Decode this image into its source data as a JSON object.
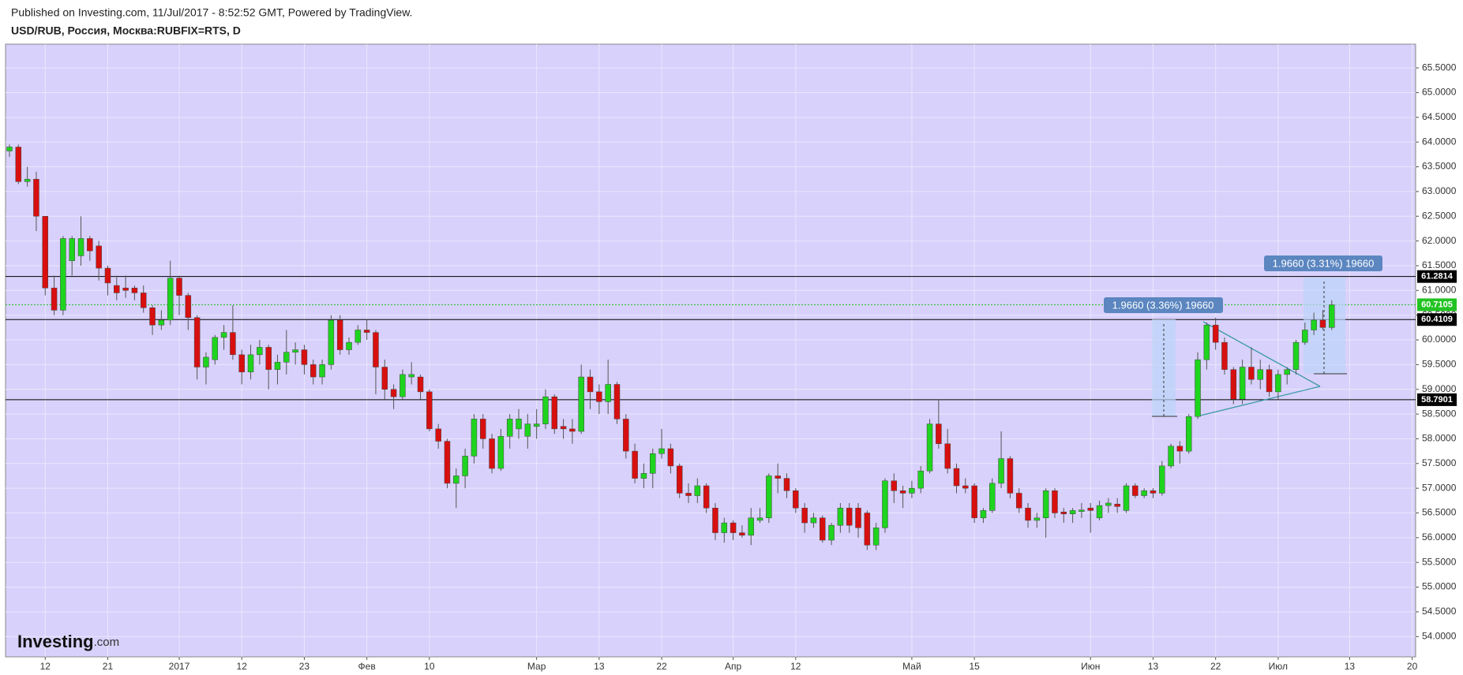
{
  "header": {
    "published": "Published on Investing.com, 11/Jul/2017 - 8:52:52 GMT, Powered by TradingView.",
    "symbol": "USD/RUB, Россия, Москва:RUBFIX=RTS, D",
    "logo": "Investing",
    "logo_suffix": ".com"
  },
  "chart_data": {
    "type": "candlestick",
    "categories": [
      null,
      null,
      null,
      null,
      "12",
      null,
      null,
      null,
      null,
      null,
      null,
      "21",
      null,
      null,
      null,
      null,
      null,
      null,
      null,
      "2017",
      null,
      null,
      null,
      null,
      null,
      null,
      "12",
      null,
      null,
      null,
      null,
      null,
      null,
      "23",
      null,
      null,
      null,
      null,
      null,
      null,
      "Фев",
      null,
      null,
      null,
      null,
      null,
      null,
      "10",
      null,
      null,
      null,
      null,
      null,
      null,
      null,
      null,
      null,
      null,
      null,
      "Мар",
      null,
      null,
      null,
      null,
      null,
      null,
      "13",
      null,
      null,
      null,
      null,
      null,
      null,
      "22",
      null,
      null,
      null,
      null,
      null,
      null,
      null,
      "Апр",
      null,
      null,
      null,
      null,
      null,
      null,
      "12",
      null,
      null,
      null,
      null,
      null,
      null,
      null,
      null,
      null,
      null,
      null,
      null,
      "Май",
      null,
      null,
      null,
      null,
      null,
      null,
      "15",
      null,
      null,
      null,
      null,
      null,
      null,
      null,
      null,
      null,
      null,
      null,
      null,
      "Июн",
      null,
      null,
      null,
      null,
      null,
      null,
      "13",
      null,
      null,
      null,
      null,
      null,
      null,
      "22",
      null,
      null,
      null,
      null,
      null,
      null,
      "Июл",
      null,
      null,
      null,
      null,
      null,
      null,
      null,
      "13",
      null,
      null,
      null,
      null,
      null,
      null,
      "20"
    ],
    "open": [
      63.82,
      63.9,
      63.2,
      63.25,
      62.5,
      61.05,
      60.6,
      61.6,
      61.7,
      62.05,
      61.9,
      61.45,
      61.1,
      61.05,
      61.05,
      60.95,
      60.65,
      60.3,
      60.4,
      61.25,
      60.9,
      60.45,
      59.45,
      59.6,
      60.05,
      60.15,
      59.7,
      59.35,
      59.7,
      59.85,
      59.4,
      59.55,
      59.75,
      59.8,
      59.5,
      59.25,
      59.5,
      60.4,
      59.8,
      59.95,
      60.2,
      60.15,
      59.45,
      59.0,
      58.85,
      59.25,
      59.25,
      58.95,
      58.2,
      57.95,
      57.1,
      57.25,
      57.65,
      58.4,
      58.0,
      57.4,
      58.05,
      58.2,
      58.05,
      58.25,
      58.3,
      58.85,
      58.25,
      58.2,
      58.15,
      59.25,
      58.95,
      58.75,
      59.1,
      58.4,
      57.75,
      57.2,
      57.3,
      57.7,
      57.8,
      57.45,
      56.9,
      56.85,
      57.05,
      56.6,
      56.1,
      56.3,
      56.1,
      56.05,
      56.35,
      56.4,
      57.25,
      57.2,
      56.95,
      56.6,
      56.3,
      56.4,
      55.95,
      56.25,
      56.6,
      56.6,
      56.5,
      55.85,
      56.2,
      57.15,
      56.95,
      56.9,
      57.0,
      57.35,
      58.3,
      57.9,
      57.4,
      57.05,
      57.05,
      56.4,
      56.55,
      57.1,
      57.6,
      56.9,
      56.6,
      56.35,
      56.4,
      56.95,
      56.52,
      56.48,
      56.53,
      56.6,
      56.4,
      56.65,
      56.68,
      56.55,
      57.05,
      56.85,
      56.95,
      56.9,
      57.45,
      57.85,
      57.75,
      58.45,
      59.6,
      60.3,
      59.95,
      59.4,
      58.8,
      59.45,
      59.2,
      59.4,
      58.95,
      59.3,
      59.4,
      59.95,
      60.2,
      60.4,
      60.25,
      null,
      null,
      null,
      null,
      null,
      null,
      null,
      null,
      null
    ],
    "high": [
      63.95,
      63.95,
      63.5,
      63.4,
      62.5,
      61.3,
      62.1,
      62.1,
      62.5,
      62.1,
      62.0,
      61.5,
      61.3,
      61.3,
      61.1,
      61.1,
      60.7,
      60.6,
      61.6,
      61.3,
      60.95,
      60.5,
      59.75,
      60.1,
      60.3,
      60.7,
      59.8,
      59.9,
      60.0,
      59.9,
      59.7,
      60.2,
      59.95,
      59.9,
      59.6,
      59.6,
      60.5,
      60.5,
      60.05,
      60.3,
      60.4,
      60.2,
      59.6,
      59.1,
      59.4,
      59.55,
      59.3,
      59.0,
      58.3,
      58.0,
      57.4,
      57.8,
      58.5,
      58.5,
      58.1,
      58.2,
      58.5,
      58.6,
      58.5,
      58.6,
      59.0,
      58.9,
      58.4,
      58.4,
      59.5,
      59.4,
      59.1,
      59.6,
      59.15,
      58.5,
      57.9,
      57.5,
      57.8,
      58.2,
      57.9,
      57.5,
      57.1,
      57.2,
      57.1,
      56.7,
      56.4,
      56.35,
      56.25,
      56.6,
      56.6,
      57.3,
      57.5,
      57.3,
      57.0,
      56.7,
      56.5,
      56.45,
      56.3,
      56.7,
      56.7,
      56.7,
      56.55,
      56.3,
      57.2,
      57.3,
      57.05,
      57.15,
      57.45,
      58.4,
      58.8,
      58.2,
      57.5,
      57.2,
      57.1,
      56.6,
      57.2,
      58.15,
      57.65,
      57.0,
      56.7,
      56.5,
      57.0,
      57.0,
      56.6,
      56.6,
      56.7,
      56.7,
      56.75,
      56.8,
      56.8,
      57.1,
      57.1,
      57.0,
      57.0,
      57.55,
      57.9,
      57.95,
      58.5,
      59.75,
      60.35,
      60.45,
      60.05,
      59.45,
      59.6,
      59.85,
      59.6,
      59.5,
      59.4,
      59.45,
      60.0,
      60.35,
      60.55,
      60.6,
      60.8,
      null,
      null,
      null,
      null,
      null,
      null,
      null,
      null,
      null
    ],
    "low": [
      63.7,
      63.15,
      63.1,
      62.2,
      60.9,
      60.5,
      60.5,
      61.3,
      61.5,
      61.6,
      61.2,
      60.9,
      60.8,
      60.85,
      60.8,
      60.55,
      60.1,
      60.2,
      60.3,
      60.5,
      60.2,
      59.2,
      59.1,
      59.5,
      59.8,
      59.6,
      59.1,
      59.2,
      59.5,
      59.0,
      59.1,
      59.3,
      59.5,
      59.3,
      59.1,
      59.1,
      59.4,
      59.7,
      59.7,
      59.9,
      60.0,
      58.9,
      58.8,
      58.6,
      58.8,
      59.1,
      58.8,
      58.15,
      57.8,
      57.0,
      56.6,
      57.0,
      57.5,
      57.8,
      57.3,
      57.35,
      57.8,
      58.0,
      57.8,
      58.0,
      58.2,
      58.1,
      58.0,
      57.9,
      58.1,
      58.6,
      58.5,
      58.5,
      58.3,
      57.6,
      57.1,
      57.0,
      57.0,
      57.6,
      57.3,
      56.8,
      56.7,
      56.7,
      56.5,
      55.95,
      55.9,
      55.95,
      56.0,
      55.85,
      56.3,
      56.3,
      56.9,
      56.8,
      56.5,
      56.1,
      56.2,
      55.9,
      55.85,
      56.1,
      56.1,
      56.0,
      55.75,
      55.75,
      56.1,
      56.7,
      56.6,
      56.8,
      56.9,
      57.3,
      57.8,
      57.3,
      56.9,
      56.9,
      56.3,
      56.3,
      56.5,
      57.0,
      56.8,
      56.5,
      56.2,
      56.2,
      56.0,
      56.4,
      56.3,
      56.3,
      56.4,
      56.1,
      56.35,
      56.5,
      56.5,
      56.5,
      56.8,
      56.8,
      56.8,
      56.85,
      57.4,
      57.5,
      57.7,
      58.4,
      59.4,
      59.8,
      59.3,
      58.7,
      58.7,
      59.1,
      59.0,
      58.85,
      58.8,
      59.1,
      59.3,
      59.9,
      60.1,
      60.2,
      60.2,
      null,
      null,
      null,
      null,
      null,
      null,
      null,
      null,
      null
    ],
    "close": [
      63.9,
      63.2,
      63.25,
      62.5,
      61.05,
      60.6,
      62.05,
      62.05,
      62.05,
      61.8,
      61.45,
      61.15,
      60.95,
      61.0,
      60.95,
      60.65,
      60.3,
      60.4,
      61.25,
      60.9,
      60.45,
      59.45,
      59.65,
      60.05,
      60.15,
      59.7,
      59.35,
      59.7,
      59.85,
      59.4,
      59.55,
      59.75,
      59.8,
      59.5,
      59.25,
      59.5,
      60.4,
      59.8,
      59.95,
      60.2,
      60.15,
      59.45,
      59.0,
      58.85,
      59.3,
      59.3,
      58.95,
      58.2,
      57.95,
      57.1,
      57.25,
      57.65,
      58.4,
      58.0,
      57.4,
      58.05,
      58.4,
      58.4,
      58.3,
      58.3,
      58.85,
      58.2,
      58.2,
      58.15,
      59.25,
      58.95,
      58.75,
      59.1,
      58.4,
      57.75,
      57.2,
      57.3,
      57.7,
      57.8,
      57.45,
      56.9,
      56.85,
      57.05,
      56.6,
      56.1,
      56.3,
      56.1,
      56.05,
      56.4,
      56.4,
      57.25,
      57.2,
      56.95,
      56.6,
      56.3,
      56.4,
      55.95,
      56.25,
      56.6,
      56.25,
      56.2,
      55.85,
      56.2,
      57.15,
      56.95,
      56.9,
      57.0,
      57.35,
      58.3,
      57.9,
      57.4,
      57.05,
      57.0,
      56.4,
      56.55,
      57.1,
      57.6,
      56.9,
      56.6,
      56.35,
      56.4,
      56.95,
      56.5,
      56.48,
      56.55,
      56.56,
      56.55,
      56.65,
      56.7,
      56.63,
      57.05,
      56.85,
      56.95,
      56.9,
      57.45,
      57.85,
      57.75,
      58.45,
      59.6,
      60.3,
      59.95,
      59.4,
      58.8,
      59.45,
      59.2,
      59.4,
      58.95,
      59.3,
      59.4,
      59.95,
      60.2,
      60.4,
      60.25,
      60.71,
      null,
      null,
      null,
      null,
      null,
      null,
      null,
      null,
      null
    ],
    "up_color": "#1ed41e",
    "down_color": "#d80f0f",
    "ylim": [
      53.59,
      65.98
    ],
    "yticks": [
      {
        "value": 54.0,
        "label": "54.0000"
      },
      {
        "value": 54.5,
        "label": "54.5000"
      },
      {
        "value": 55.0,
        "label": "55.0000"
      },
      {
        "value": 55.5,
        "label": "55.5000"
      },
      {
        "value": 56.0,
        "label": "56.0000"
      },
      {
        "value": 56.5,
        "label": "56.5000"
      },
      {
        "value": 57.0,
        "label": "57.0000"
      },
      {
        "value": 57.5,
        "label": "57.5000"
      },
      {
        "value": 58.0,
        "label": "58.0000"
      },
      {
        "value": 58.5,
        "label": "58.5000"
      },
      {
        "value": 59.0,
        "label": "59.0000"
      },
      {
        "value": 59.5,
        "label": "59.5000"
      },
      {
        "value": 60.0,
        "label": "60.0000"
      },
      {
        "value": 60.5,
        "label": "60.5000"
      },
      {
        "value": 61.0,
        "label": "61.0000"
      },
      {
        "value": 61.5,
        "label": "61.5000"
      },
      {
        "value": 62.0,
        "label": "62.0000"
      },
      {
        "value": 62.5,
        "label": "62.5000"
      },
      {
        "value": 63.0,
        "label": "63.0000"
      },
      {
        "value": 63.5,
        "label": "63.5000"
      },
      {
        "value": 64.0,
        "label": "64.0000"
      },
      {
        "value": 64.5,
        "label": "64.5000"
      },
      {
        "value": 65.0,
        "label": "65.0000"
      },
      {
        "value": 65.5,
        "label": "65.5000"
      }
    ],
    "grid": true,
    "levels": [
      {
        "value": 61.2814,
        "label": "61.2814",
        "color": "#000000"
      },
      {
        "value": 60.4109,
        "label": "60.4109",
        "color": "#000000"
      },
      {
        "value": 58.7901,
        "label": "58.7901",
        "color": "#000000"
      },
      {
        "value": 60.7105,
        "label": "60.7105",
        "color": "#22c322"
      }
    ],
    "annotations": [
      "1.9660 (3.36%) 19660",
      "1.9660 (3.31%) 19660"
    ]
  }
}
